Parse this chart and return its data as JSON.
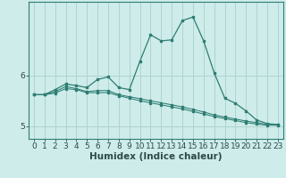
{
  "title": "",
  "xlabel": "Humidex (Indice chaleur)",
  "background_color": "#ceecea",
  "grid_color": "#aed4d0",
  "line_color": "#2e7d73",
  "x_values": [
    0,
    1,
    2,
    3,
    4,
    5,
    6,
    7,
    8,
    9,
    10,
    11,
    12,
    13,
    14,
    15,
    16,
    17,
    18,
    19,
    20,
    21,
    22,
    23
  ],
  "line1": [
    5.62,
    5.62,
    5.72,
    5.83,
    5.8,
    5.76,
    5.92,
    5.97,
    5.76,
    5.72,
    6.28,
    6.8,
    6.68,
    6.7,
    7.08,
    7.15,
    6.68,
    6.05,
    5.55,
    5.45,
    5.3,
    5.12,
    5.05,
    5.03
  ],
  "line2": [
    5.62,
    5.62,
    5.68,
    5.78,
    5.74,
    5.68,
    5.7,
    5.7,
    5.62,
    5.58,
    5.54,
    5.5,
    5.46,
    5.42,
    5.38,
    5.33,
    5.28,
    5.22,
    5.18,
    5.14,
    5.1,
    5.07,
    5.03,
    5.03
  ],
  "line3": [
    5.62,
    5.62,
    5.65,
    5.74,
    5.72,
    5.66,
    5.66,
    5.66,
    5.6,
    5.55,
    5.5,
    5.46,
    5.42,
    5.38,
    5.34,
    5.29,
    5.24,
    5.19,
    5.15,
    5.11,
    5.07,
    5.04,
    5.02,
    5.02
  ],
  "ylim": [
    4.75,
    7.45
  ],
  "yticks": [
    5,
    6
  ],
  "xlim": [
    -0.5,
    23.5
  ],
  "tick_fontsize": 6.5,
  "xlabel_fontsize": 7.5,
  "spine_color": "#2e7d73"
}
